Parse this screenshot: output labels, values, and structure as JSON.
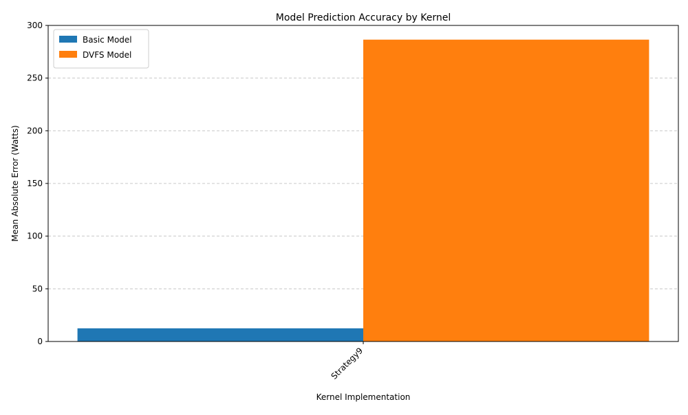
{
  "chart_data": {
    "type": "bar",
    "title": "Model Prediction Accuracy by Kernel",
    "xlabel": "Kernel Implementation",
    "ylabel": "Mean Absolute Error (Watts)",
    "categories": [
      "Strategy9"
    ],
    "series": [
      {
        "name": "Basic Model",
        "values": [
          12.5
        ],
        "color": "#1f77b4"
      },
      {
        "name": "DVFS Model",
        "values": [
          286.5
        ],
        "color": "#ff7f0e"
      }
    ],
    "ylim": [
      0,
      300
    ],
    "yticks": [
      0,
      50,
      100,
      150,
      200,
      250,
      300
    ],
    "grid": "y-dashed",
    "legend_position": "top-left",
    "x_tick_rotation": 45
  }
}
